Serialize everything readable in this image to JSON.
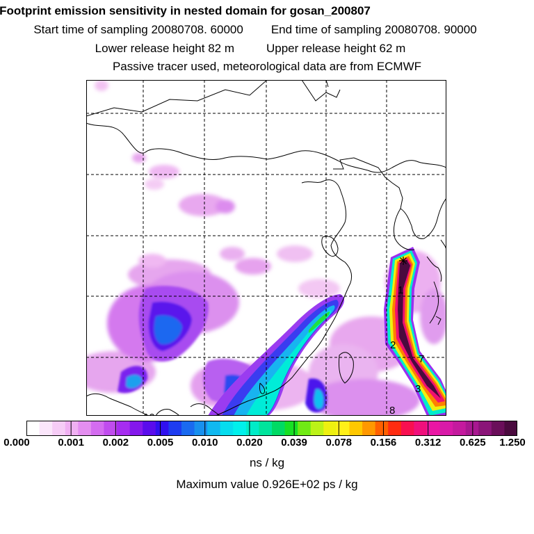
{
  "header": {
    "title": "Footprint emission sensitivity in nested domain for gosan_200807",
    "start_label": "Start time of sampling 20080708. 60000",
    "end_label": "End time of sampling 20080708. 90000",
    "lower_release": "Lower release height   82 m",
    "upper_release": "Upper release height   62 m",
    "tracer_note": "Passive tracer used, meteorological data are from ECMWF"
  },
  "map": {
    "trajectory_labels": [
      "1",
      "2",
      "7",
      "3",
      "8",
      "10"
    ],
    "release_marker_icon": "asterisk-icon",
    "gridline_style": "dashed"
  },
  "colorbar": {
    "colors": [
      "#ffffff",
      "#fbe6fb",
      "#f6ccf6",
      "#f0b0f2",
      "#e48ef0",
      "#d46cf0",
      "#c04cee",
      "#a62cf0",
      "#8418ec",
      "#5a0cec",
      "#3010ef",
      "#1e3cf0",
      "#1a6af0",
      "#1890ee",
      "#10b8f0",
      "#06dcee",
      "#00f0ec",
      "#00ecc8",
      "#00e49c",
      "#00da64",
      "#18e024",
      "#70ea14",
      "#bcf218",
      "#eef010",
      "#fff018",
      "#ffc800",
      "#ff9800",
      "#ff6000",
      "#ff2c10",
      "#f81050",
      "#f0107c",
      "#ea16a4",
      "#d81aa8",
      "#c41a9e",
      "#a81890",
      "#8a1478",
      "#6a0e5a",
      "#4a0a3e"
    ],
    "tick_labels": [
      "0.000",
      "0.001",
      "0.002",
      "0.005",
      "0.010",
      "0.020",
      "0.039",
      "0.078",
      "0.156",
      "0.312",
      "0.625",
      "1.250"
    ],
    "unit": "ns / kg"
  },
  "footer": {
    "max_value": "Maximum value  0.926E+02 ps / kg"
  }
}
